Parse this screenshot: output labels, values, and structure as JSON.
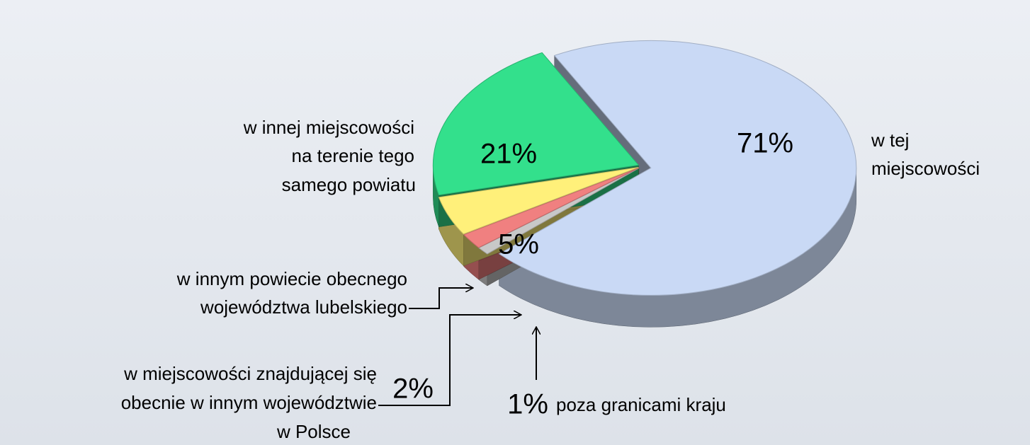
{
  "chart_data": {
    "type": "pie",
    "categories": [
      [
        "w tej",
        "miejscowości"
      ],
      [
        "w innej miejscowości",
        "na terenie tego",
        "samego powiatu"
      ],
      [
        "w innym powiecie obecnego",
        "województwa lubelskiego"
      ],
      [
        "w miejscowości znajdującej się",
        "obecnie w innym województwie",
        "w Polsce"
      ],
      [
        "poza granicami kraju"
      ]
    ],
    "values": [
      71,
      21,
      5,
      2,
      1
    ],
    "value_labels": [
      "71%",
      "21%",
      "5%",
      "2%",
      "1%"
    ],
    "colors": [
      "#c9d9f5",
      "#33e08c",
      "#fff07a",
      "#f08080",
      "#c8c8c8"
    ]
  }
}
